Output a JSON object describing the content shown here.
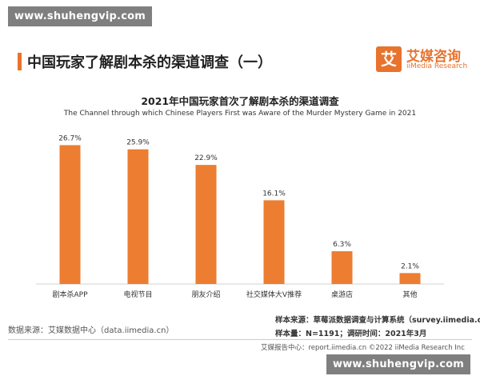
{
  "watermark": {
    "top": "www.shuhengvip.com",
    "bottom": "www.shuhengvip.com"
  },
  "header": {
    "title": "中国玩家了解剧本杀的渠道调查（一）"
  },
  "logo": {
    "box_char": "艾",
    "name_cn": "艾媒咨询",
    "name_en": "iiMedia Research"
  },
  "chart_data": {
    "type": "bar",
    "title": "2021年中国玩家首次了解剧本杀的渠道调查",
    "subtitle": "The Channel through which Chinese Players First was Aware of the Murder Mystery Game in 2021",
    "categories": [
      "剧本杀APP",
      "电视节目",
      "朋友介绍",
      "社交媒体大V推荐",
      "桌游店",
      "其他"
    ],
    "values": [
      26.7,
      25.9,
      22.9,
      16.1,
      6.3,
      2.1
    ],
    "value_labels": [
      "26.7%",
      "25.9%",
      "22.9%",
      "16.1%",
      "6.3%",
      "2.1%"
    ],
    "unit": "%",
    "ylim": [
      0,
      30
    ],
    "bar_color": "#ed7d31",
    "grid": false,
    "legend": "none"
  },
  "source": {
    "left": "数据来源：艾媒数据中心（data.iimedia.cn）",
    "sample_source": "样本来源：草莓派数据调查与计算系统（survey.iimedia.cn）",
    "sample_size": "样本量：N=1191；调研时间：2021年3月"
  },
  "footer": {
    "text": "艾媒报告中心：report.iimedia.cn  ©2022  iiMedia Research  Inc"
  }
}
